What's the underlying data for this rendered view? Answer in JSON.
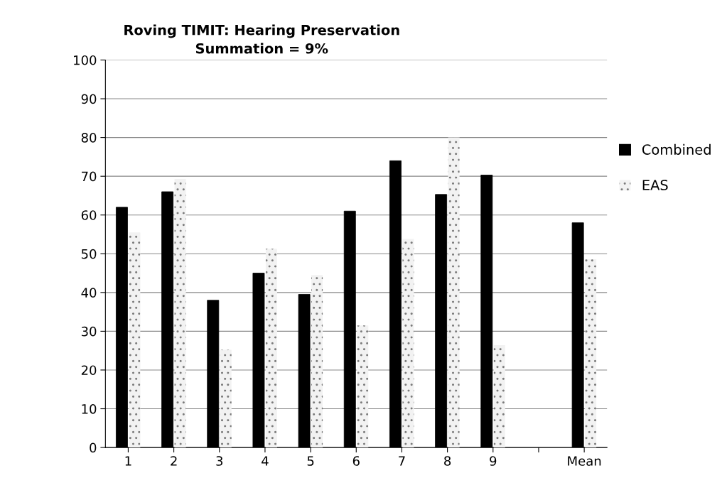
{
  "chart_data": {
    "type": "bar",
    "title": "Roving TIMIT: Hearing Preservation",
    "subtitle": "Summation = 9%",
    "categories": [
      "1",
      "2",
      "3",
      "4",
      "5",
      "6",
      "7",
      "8",
      "9",
      null,
      "Mean"
    ],
    "series": [
      {
        "name": "Combined",
        "color": "#000000",
        "values": [
          62,
          66,
          38,
          45,
          39.5,
          61,
          74,
          65.3,
          70.3,
          null,
          58
        ]
      },
      {
        "name": "EAS",
        "color": "#f2f2f2",
        "values": [
          55.5,
          69.3,
          25.2,
          51.3,
          44.5,
          31.5,
          53.8,
          80,
          26.4,
          null,
          48.6
        ]
      }
    ],
    "ylim": [
      0,
      100
    ],
    "yticks": [
      0,
      10,
      20,
      30,
      40,
      50,
      60,
      70,
      80,
      90,
      100
    ],
    "grid": "y",
    "legend": "right"
  }
}
